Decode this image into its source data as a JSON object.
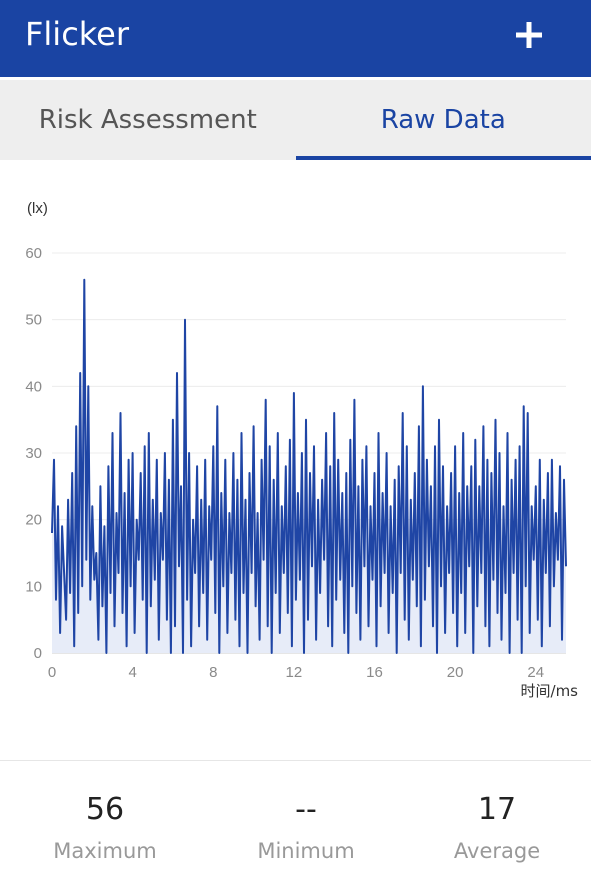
{
  "app": {
    "title": "Flicker"
  },
  "icons": {
    "add": "plus-icon"
  },
  "colors": {
    "primary": "#1a44a3",
    "series": "#1f45a5",
    "fill": "#e7ecf8"
  },
  "tabs": [
    {
      "label": "Risk Assessment",
      "active": false
    },
    {
      "label": "Raw Data",
      "active": true
    }
  ],
  "chart_data": {
    "type": "area",
    "ylabel": "(lx)",
    "xlabel": "时间/ms",
    "ylim": [
      0,
      60
    ],
    "xlim": [
      0,
      25.5
    ],
    "yticks": [
      0,
      10,
      20,
      30,
      40,
      50,
      60
    ],
    "xticks": [
      0,
      4,
      8,
      12,
      16,
      20,
      24
    ],
    "grid": true,
    "series": [
      {
        "x": [
          0.0,
          0.1,
          0.2,
          0.3,
          0.4,
          0.5,
          0.6,
          0.7,
          0.8,
          0.9,
          1.0,
          1.1,
          1.2,
          1.3,
          1.4,
          1.5,
          1.6,
          1.7,
          1.8,
          1.9,
          2.0,
          2.1,
          2.2,
          2.3,
          2.4,
          2.5,
          2.6,
          2.7,
          2.8,
          2.9,
          3.0,
          3.1,
          3.2,
          3.3,
          3.4,
          3.5,
          3.6,
          3.7,
          3.8,
          3.9,
          4.0,
          4.1,
          4.2,
          4.3,
          4.4,
          4.5,
          4.6,
          4.7,
          4.8,
          4.9,
          5.0,
          5.1,
          5.2,
          5.3,
          5.4,
          5.5,
          5.6,
          5.7,
          5.8,
          5.9,
          6.0,
          6.1,
          6.2,
          6.3,
          6.4,
          6.5,
          6.6,
          6.7,
          6.8,
          6.9,
          7.0,
          7.1,
          7.2,
          7.3,
          7.4,
          7.5,
          7.6,
          7.7,
          7.8,
          7.9,
          8.0,
          8.1,
          8.2,
          8.3,
          8.4,
          8.5,
          8.6,
          8.7,
          8.8,
          8.9,
          9.0,
          9.1,
          9.2,
          9.3,
          9.4,
          9.5,
          9.6,
          9.7,
          9.8,
          9.9,
          10.0,
          10.1,
          10.2,
          10.3,
          10.4,
          10.5,
          10.6,
          10.7,
          10.8,
          10.9,
          11.0,
          11.1,
          11.2,
          11.3,
          11.4,
          11.5,
          11.6,
          11.7,
          11.8,
          11.9,
          12.0,
          12.1,
          12.2,
          12.3,
          12.4,
          12.5,
          12.6,
          12.7,
          12.8,
          12.9,
          13.0,
          13.1,
          13.2,
          13.3,
          13.4,
          13.5,
          13.6,
          13.7,
          13.8,
          13.9,
          14.0,
          14.1,
          14.2,
          14.3,
          14.4,
          14.5,
          14.6,
          14.7,
          14.8,
          14.9,
          15.0,
          15.1,
          15.2,
          15.3,
          15.4,
          15.5,
          15.6,
          15.7,
          15.8,
          15.9,
          16.0,
          16.1,
          16.2,
          16.3,
          16.4,
          16.5,
          16.6,
          16.7,
          16.8,
          16.9,
          17.0,
          17.1,
          17.2,
          17.3,
          17.4,
          17.5,
          17.6,
          17.7,
          17.8,
          17.9,
          18.0,
          18.1,
          18.2,
          18.3,
          18.4,
          18.5,
          18.6,
          18.7,
          18.8,
          18.9,
          19.0,
          19.1,
          19.2,
          19.3,
          19.4,
          19.5,
          19.6,
          19.7,
          19.8,
          19.9,
          20.0,
          20.1,
          20.2,
          20.3,
          20.4,
          20.5,
          20.6,
          20.7,
          20.8,
          20.9,
          21.0,
          21.1,
          21.2,
          21.3,
          21.4,
          21.5,
          21.6,
          21.7,
          21.8,
          21.9,
          22.0,
          22.1,
          22.2,
          22.3,
          22.4,
          22.5,
          22.6,
          22.7,
          22.8,
          22.9,
          23.0,
          23.1,
          23.2,
          23.3,
          23.4,
          23.5,
          23.6,
          23.7,
          23.8,
          23.9,
          24.0,
          24.1,
          24.2,
          24.3,
          24.4,
          24.5,
          24.6,
          24.7,
          24.8,
          24.9,
          25.0,
          25.1,
          25.2,
          25.3,
          25.4,
          25.5
        ],
        "y": [
          18,
          29,
          8,
          22,
          3,
          19,
          12,
          5,
          23,
          9,
          27,
          1,
          34,
          6,
          42,
          10,
          56,
          14,
          40,
          8,
          22,
          11,
          15,
          2,
          25,
          7,
          19,
          0,
          28,
          9,
          33,
          4,
          21,
          12,
          36,
          6,
          24,
          1,
          29,
          10,
          30,
          3,
          20,
          14,
          27,
          8,
          31,
          0,
          33,
          7,
          23,
          11,
          29,
          2,
          21,
          14,
          30,
          5,
          26,
          0,
          35,
          4,
          42,
          13,
          25,
          0,
          50,
          8,
          30,
          1,
          20,
          12,
          28,
          4,
          23,
          9,
          29,
          2,
          22,
          14,
          31,
          6,
          37,
          0,
          24,
          10,
          29,
          3,
          21,
          12,
          30,
          5,
          26,
          1,
          33,
          9,
          23,
          0,
          27,
          12,
          34,
          7,
          21,
          2,
          29,
          14,
          38,
          4,
          31,
          0,
          26,
          9,
          33,
          3,
          22,
          12,
          28,
          6,
          32,
          1,
          39,
          8,
          24,
          11,
          30,
          0,
          35,
          5,
          27,
          13,
          31,
          2,
          23,
          9,
          26,
          14,
          33,
          4,
          28,
          1,
          36,
          8,
          29,
          11,
          24,
          3,
          27,
          0,
          32,
          10,
          38,
          6,
          25,
          2,
          29,
          13,
          31,
          4,
          22,
          11,
          27,
          1,
          33,
          7,
          24,
          12,
          30,
          3,
          22,
          9,
          26,
          0,
          28,
          12,
          36,
          5,
          31,
          2,
          23,
          11,
          27,
          7,
          34,
          1,
          40,
          8,
          29,
          13,
          25,
          4,
          31,
          0,
          35,
          10,
          28,
          3,
          22,
          12,
          27,
          6,
          31,
          1,
          24,
          9,
          33,
          3,
          25,
          13,
          28,
          0,
          32,
          7,
          25,
          12,
          34,
          4,
          29,
          1,
          27,
          11,
          35,
          6,
          30,
          2,
          22,
          9,
          33,
          0,
          26,
          12,
          29,
          5,
          31,
          0,
          37,
          10,
          36,
          3,
          22,
          14,
          25,
          5,
          29,
          1,
          23,
          12,
          27,
          4,
          29,
          10,
          21,
          14,
          28,
          2,
          26,
          13
        ]
      }
    ]
  },
  "stats": [
    {
      "value": "56",
      "label": "Maximum"
    },
    {
      "value": "--",
      "label": "Minimum"
    },
    {
      "value": "17",
      "label": "Average"
    }
  ]
}
